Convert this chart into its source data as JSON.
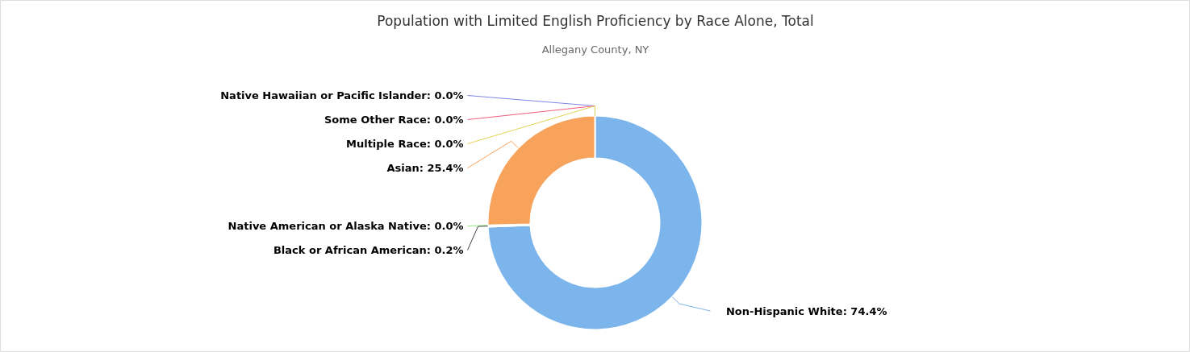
{
  "chart_data": {
    "type": "donut",
    "title": "Population with Limited English Proficiency by Race Alone, Total",
    "subtitle": "Allegany County, NY",
    "categories": [
      "Non-Hispanic White",
      "Black or African American",
      "Native American or Alaska Native",
      "Asian",
      "Multiple Race",
      "Some Other Race",
      "Native Hawaiian or Pacific Islander"
    ],
    "values": [
      74.4,
      0.2,
      0.0,
      25.4,
      0.0,
      0.0,
      0.0
    ],
    "colors": [
      "#7cb5ec",
      "#434348",
      "#90ed7d",
      "#f7a35c",
      "#e4d354",
      "#f15c80",
      "#8085e9"
    ],
    "value_labels": [
      ": 74.4%",
      ": 0.2%",
      ": 0.0%",
      ": 25.4%",
      ": 0.0%",
      ": 0.0%",
      ": 0.0%"
    ]
  }
}
